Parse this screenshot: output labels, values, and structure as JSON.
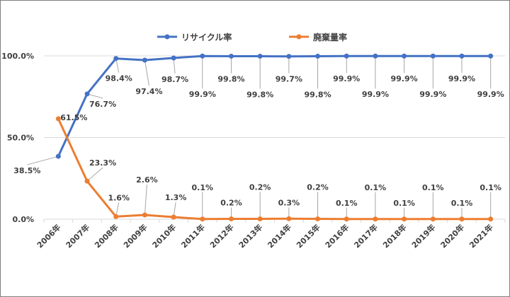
{
  "chart_data": {
    "type": "line",
    "categories": [
      "2006年",
      "2007年",
      "2008年",
      "2009年",
      "2010年",
      "2011年",
      "2012年",
      "2013年",
      "2014年",
      "2015年",
      "2016年",
      "2017年",
      "2018年",
      "2019年",
      "2020年",
      "2021年"
    ],
    "y_tick_labels": [
      "0.0%",
      "50.0%",
      "100.0%"
    ],
    "ylim": [
      0,
      100
    ],
    "grid": true,
    "legend_position": "top",
    "series": [
      {
        "name": "リサイクル率",
        "color": "#4472c4",
        "values": [
          38.5,
          76.7,
          98.4,
          97.4,
          98.7,
          99.9,
          99.8,
          99.8,
          99.7,
          99.8,
          99.9,
          99.9,
          99.9,
          99.9,
          99.9,
          99.9
        ],
        "labels": [
          "38.5%",
          "76.7%",
          "98.4%",
          "97.4%",
          "98.7%",
          "99.9%",
          "99.8%",
          "99.8%",
          "99.7%",
          "99.8%",
          "99.9%",
          "99.9%",
          "99.9%",
          "99.9%",
          "99.9%",
          "99.9%"
        ]
      },
      {
        "name": "廃棄量率",
        "color": "#ed7d31",
        "values": [
          61.5,
          23.3,
          1.6,
          2.6,
          1.3,
          0.1,
          0.2,
          0.2,
          0.3,
          0.2,
          0.1,
          0.1,
          0.1,
          0.1,
          0.1,
          0.1
        ],
        "labels": [
          "61.5%",
          "23.3%",
          "1.6%",
          "2.6%",
          "1.3%",
          "0.1%",
          "0.2%",
          "0.2%",
          "0.3%",
          "0.2%",
          "0.1%",
          "0.1%",
          "0.1%",
          "0.1%",
          "0.1%",
          "0.1%"
        ]
      }
    ]
  }
}
